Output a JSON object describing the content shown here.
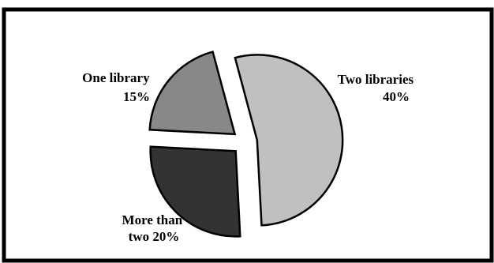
{
  "chart_data": {
    "type": "pie",
    "exploded": true,
    "slices": [
      {
        "name": "Two libraries",
        "value": 40,
        "label_line1": "Two libraries",
        "label_line2": "40%",
        "color": "#c0c0c0"
      },
      {
        "name": "More than two",
        "value": 20,
        "label_line1": "More than",
        "label_line2": "two  20%",
        "color": "#333333"
      },
      {
        "name": "One library",
        "value": 15,
        "label_line1": "One library",
        "label_line2": "15%",
        "color": "#888888"
      }
    ]
  }
}
